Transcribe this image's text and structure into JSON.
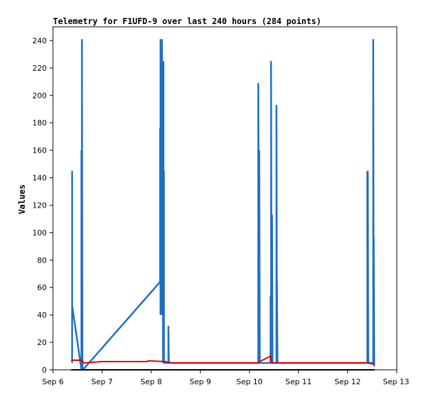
{
  "chart_data": {
    "type": "line",
    "title": "Telemetry for F1UFD-9 over last 240 hours (284 points)",
    "xlabel": "",
    "ylabel": "Values",
    "x_unit": "days (September)",
    "xlim": [
      6,
      13
    ],
    "ylim": [
      0,
      250
    ],
    "x_ticks": [
      {
        "value": 6,
        "label": "Sep 6"
      },
      {
        "value": 7,
        "label": "Sep 7"
      },
      {
        "value": 8,
        "label": "Sep 8"
      },
      {
        "value": 9,
        "label": "Sep 9"
      },
      {
        "value": 10,
        "label": "Sep 10"
      },
      {
        "value": 11,
        "label": "Sep 11"
      },
      {
        "value": 12,
        "label": "Sep 12"
      },
      {
        "value": 13,
        "label": "Sep 13"
      }
    ],
    "y_ticks": [
      0,
      20,
      40,
      60,
      80,
      100,
      120,
      140,
      160,
      180,
      200,
      220,
      240
    ],
    "grid": false,
    "legend": "none",
    "colors": {
      "blue": "#1f6fc0",
      "red": "#e00000",
      "black": "#000000"
    },
    "series": [
      {
        "color": "#1f6fc0",
        "x": [
          6.39,
          6.39,
          6.39,
          6.39,
          6.58,
          6.58,
          6.59,
          6.59,
          6.6,
          6.6,
          6.61,
          8.18,
          8.18,
          8.19,
          8.19,
          8.2,
          8.2,
          8.21,
          8.21,
          8.22,
          8.22,
          8.23,
          8.23,
          8.24,
          8.24,
          8.25,
          8.25,
          8.26,
          8.26,
          8.35,
          8.35,
          8.36,
          8.36,
          8.37,
          8.37,
          8.38,
          8.38,
          10.18,
          10.18,
          10.2,
          10.2,
          10.21,
          10.43,
          10.43,
          10.44,
          10.44,
          10.45,
          10.45,
          10.46,
          10.46,
          10.47,
          10.47,
          10.55,
          10.55,
          10.56,
          10.56,
          10.57,
          12.4,
          12.4,
          12.41,
          12.41,
          12.42,
          12.52,
          12.52,
          12.53,
          12.53,
          12.54,
          12.54,
          12.55
        ],
        "y": [
          5,
          145,
          47,
          47,
          0,
          160,
          0,
          241,
          0,
          0,
          0,
          64,
          176,
          40,
          241,
          40,
          200,
          40,
          121,
          40,
          241,
          40,
          50,
          40,
          5,
          225,
          5,
          145,
          5,
          5,
          32,
          5,
          5,
          5,
          5,
          5,
          5,
          5,
          209,
          5,
          160,
          5,
          5,
          54,
          5,
          225,
          5,
          32,
          5,
          113,
          5,
          5,
          5,
          193,
          5,
          64,
          5,
          5,
          145,
          5,
          145,
          5,
          5,
          241,
          5,
          97,
          5,
          3,
          3
        ]
      },
      {
        "color": "#e00000",
        "x": [
          6.37,
          6.6,
          6.62,
          7.0,
          7.9,
          7.95,
          8.3,
          8.4,
          10.18,
          10.21,
          10.43,
          10.44,
          12.4,
          12.55
        ],
        "y": [
          7,
          7,
          5,
          6,
          6,
          6.5,
          6,
          5,
          5,
          6,
          10,
          5,
          5,
          4
        ]
      },
      {
        "color": "#000000",
        "x": [
          6.37,
          12.55
        ],
        "y": [
          0,
          0
        ]
      }
    ]
  }
}
